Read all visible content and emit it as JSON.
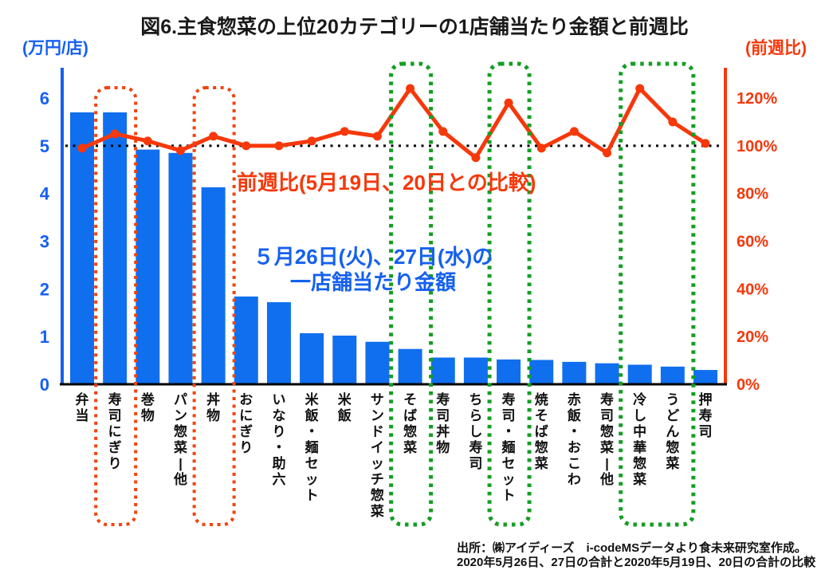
{
  "title": "図6.主食惣菜の上位20カテゴリーの1店舗当たり金額と前週比",
  "left_axis": {
    "unit_label": "(万円/店)",
    "tick_labels": [
      "0",
      "1",
      "2",
      "3",
      "4",
      "5",
      "6"
    ],
    "color": "#1560f0"
  },
  "right_axis": {
    "unit_label": "(前週比)",
    "tick_labels": [
      "0%",
      "20%",
      "40%",
      "60%",
      "80%",
      "100%",
      "120%"
    ],
    "color": "#f6380b"
  },
  "annotations": {
    "line_note": "前週比(5月19日、20日との比較)",
    "bar_note_line1": "５月26日(火)、27日(水)の",
    "bar_note_line2": "一店舗当たり金額"
  },
  "source": {
    "line1": "出所：㈱アイディーズ　i-codeMSデータより食未来研究室作成。",
    "line2": "2020年5月26日、27日の合計と2020年5月19日、20日の合計の比較"
  },
  "chart_data": {
    "type": "bar",
    "subtype": "combo-bar-line-dual-axis",
    "categories": [
      "弁当",
      "寿司にぎり",
      "巻物",
      "パン惣菜|他",
      "丼物",
      "おにぎり",
      "いなり・助六",
      "米飯・麺セット",
      "米飯",
      "サンドイッチ惣菜",
      "そば惣菜",
      "寿司丼物",
      "ちらし寿司",
      "寿司・麺セット",
      "焼そば惣菜",
      "赤飯・おこわ",
      "寿司惣菜|他",
      "冷し中華惣菜",
      "うどん惣菜",
      "押寿司"
    ],
    "series": [
      {
        "name": "一店舗当たり金額",
        "type": "bar",
        "axis": "left",
        "unit": "万円/店",
        "color": "#106fee",
        "values": [
          5.7,
          5.7,
          4.92,
          4.85,
          4.13,
          1.84,
          1.72,
          1.07,
          1.02,
          0.89,
          0.74,
          0.56,
          0.56,
          0.52,
          0.51,
          0.47,
          0.44,
          0.41,
          0.37,
          0.3
        ]
      },
      {
        "name": "前週比",
        "type": "line",
        "axis": "right",
        "unit": "%",
        "color": "#f6380b",
        "values": [
          99,
          105,
          102,
          98,
          104,
          100,
          100,
          102,
          106,
          104,
          124,
          106,
          95,
          118,
          99,
          106,
          97,
          124,
          110,
          101
        ]
      }
    ],
    "left_ylim": [
      0,
      6
    ],
    "right_ylim": [
      0,
      120
    ],
    "reference_line": {
      "axis": "right",
      "value": 100,
      "style": "dotted",
      "color": "#000000"
    },
    "grid": "off",
    "legend": "none",
    "highlight_boxes": [
      {
        "color": "#f2430e",
        "style": "dotted",
        "from": 1,
        "to": 1,
        "categories": [
          "寿司にぎり"
        ]
      },
      {
        "color": "#f2430e",
        "style": "dotted",
        "from": 4,
        "to": 4,
        "categories": [
          "丼物"
        ]
      },
      {
        "color": "#149e24",
        "style": "dotted",
        "from": 10,
        "to": 10,
        "categories": [
          "そば惣菜"
        ]
      },
      {
        "color": "#149e24",
        "style": "dotted",
        "from": 13,
        "to": 13,
        "categories": [
          "寿司・麺セット"
        ]
      },
      {
        "color": "#149e24",
        "style": "dotted",
        "from": 17,
        "to": 18,
        "categories": [
          "冷し中華惣菜",
          "うどん惣菜"
        ]
      }
    ]
  }
}
